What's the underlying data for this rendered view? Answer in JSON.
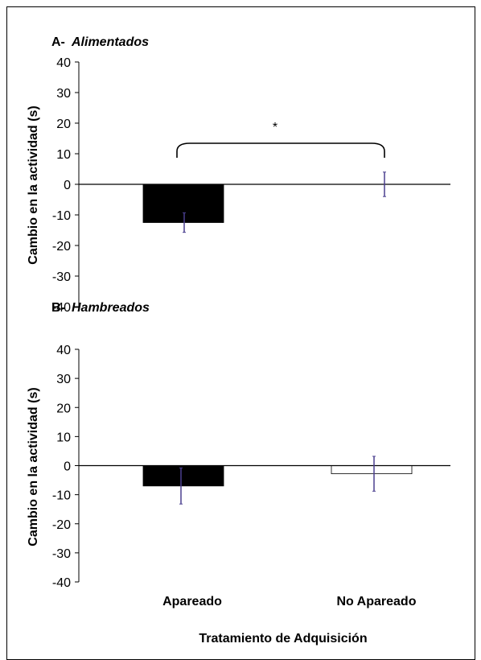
{
  "chart_data": [
    {
      "type": "bar",
      "panel_label": "A-",
      "title": "Alimentados",
      "ylabel": "Cambio en la actividad (s)",
      "ylim": [
        -40,
        40
      ],
      "yticks": [
        40,
        30,
        20,
        10,
        0,
        -10,
        -20,
        -30,
        -40
      ],
      "categories": [
        "Apareado",
        "No  Apareado"
      ],
      "values": [
        -12.5,
        0
      ],
      "errors": [
        3.2,
        4.0
      ],
      "bar_colors": [
        "#000000",
        "#ffffff"
      ],
      "error_color": "#4a3f8f",
      "significance": {
        "text": "*",
        "between": [
          0,
          1
        ]
      }
    },
    {
      "type": "bar",
      "panel_label": "B-",
      "title": "Hambreados",
      "ylabel": "Cambio en la actividad (s)",
      "ylim": [
        -40,
        40
      ],
      "yticks": [
        40,
        30,
        20,
        10,
        0,
        -10,
        -20,
        -30,
        -40
      ],
      "categories": [
        "Apareado",
        "No  Apareado"
      ],
      "values": [
        -7,
        -2.8
      ],
      "errors": [
        6.2,
        6.0
      ],
      "bar_colors": [
        "#000000",
        "#ffffff"
      ],
      "error_color": "#4a3f8f"
    }
  ],
  "xlabel": "Tratamiento de Adquisición"
}
